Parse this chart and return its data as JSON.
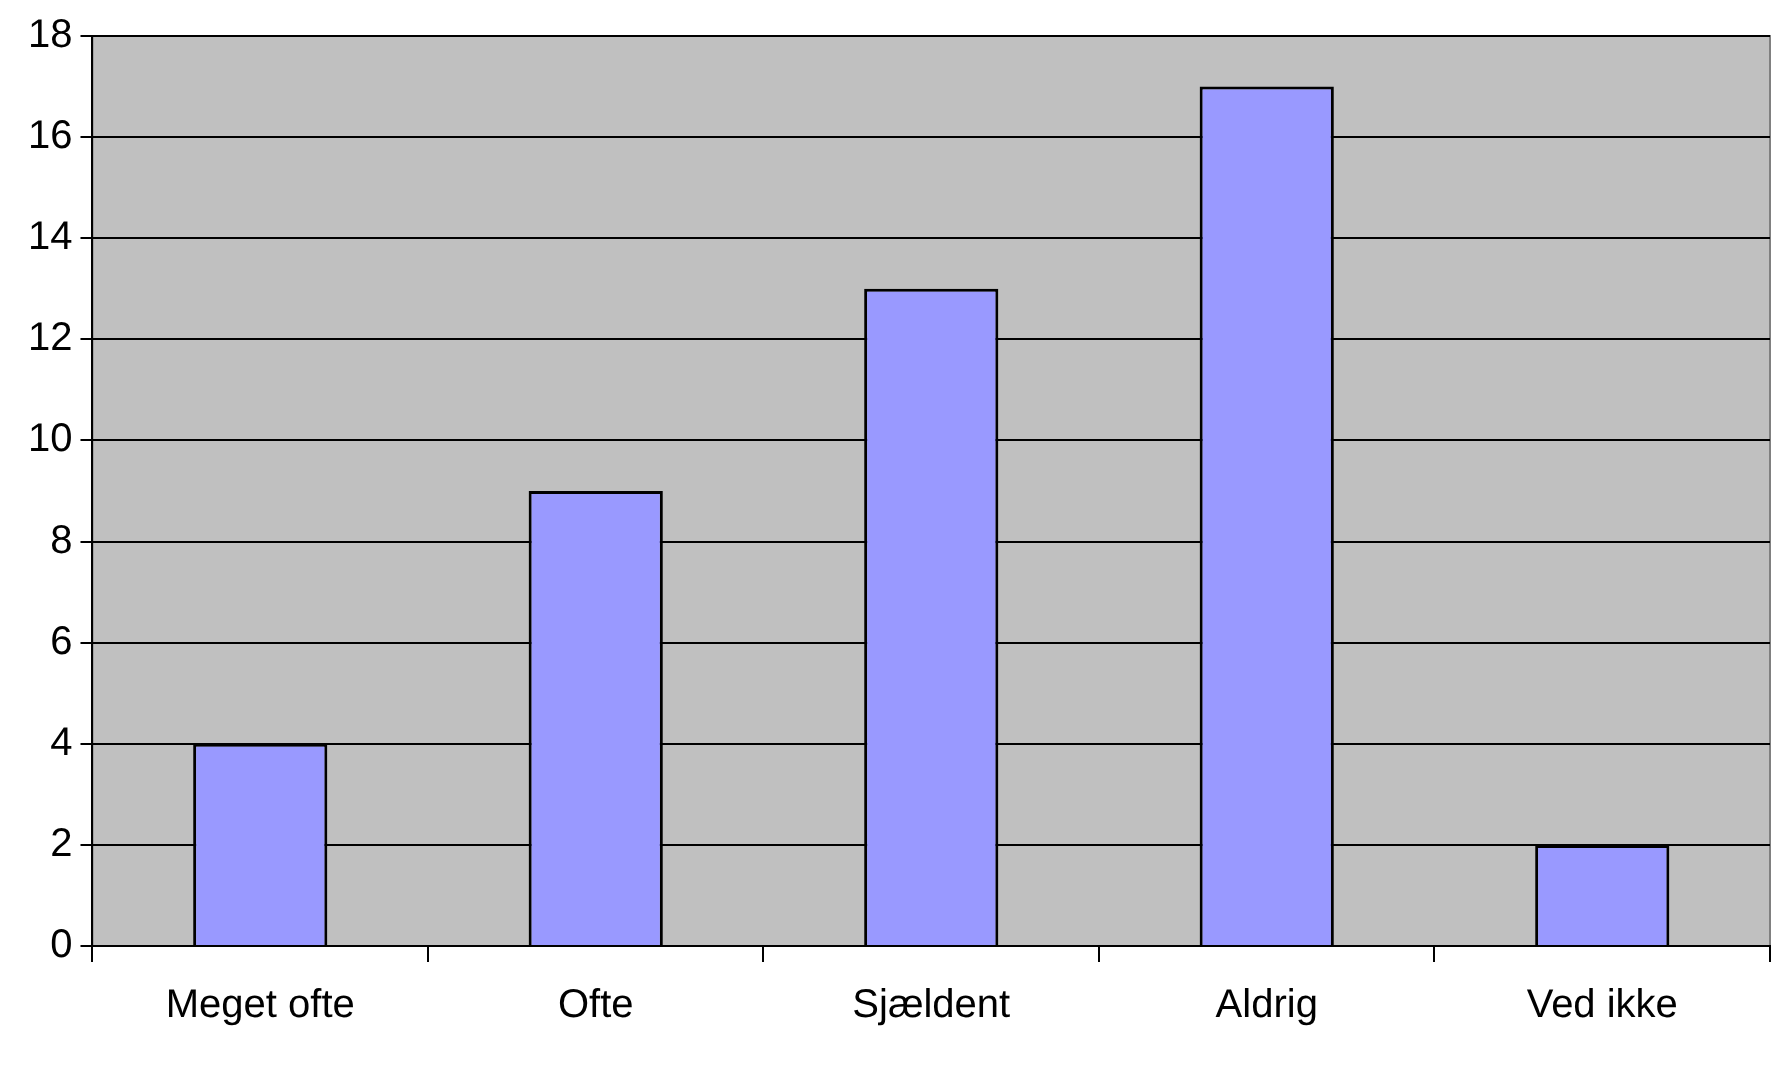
{
  "chart_data": {
    "type": "bar",
    "categories": [
      "Meget ofte",
      "Ofte",
      "Sjældent",
      "Aldrig",
      "Ved ikke"
    ],
    "values": [
      4,
      9,
      13,
      17,
      2
    ],
    "color": "#9999ff",
    "ylim": [
      0,
      18
    ],
    "yticks": [
      0,
      2,
      4,
      6,
      8,
      10,
      12,
      14,
      16,
      18
    ],
    "grid": "y"
  }
}
